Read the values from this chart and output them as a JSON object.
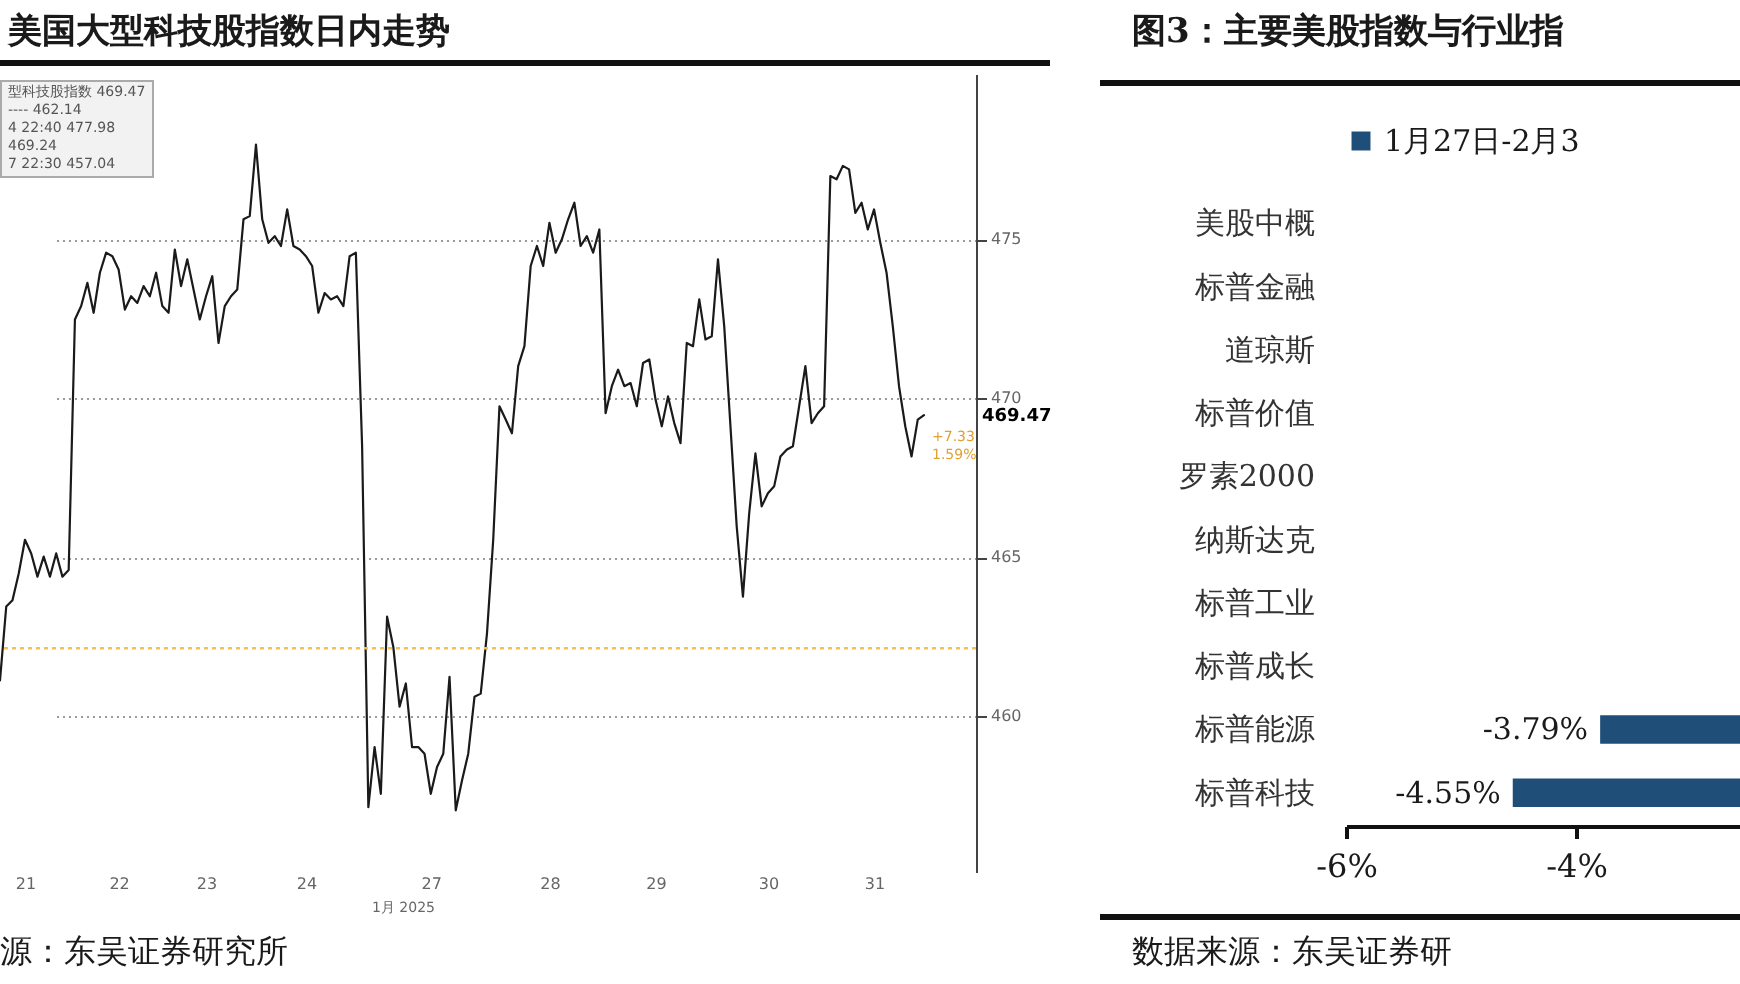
{
  "chart_data": [
    {
      "type": "line",
      "title": "美国大型科技股指数日内走势",
      "categories": [
        null,
        null,
        null,
        null,
        "21",
        null,
        null,
        null,
        null,
        null,
        null,
        null,
        null,
        null,
        null,
        null,
        null,
        null,
        null,
        "22",
        null,
        null,
        null,
        null,
        null,
        null,
        null,
        null,
        null,
        null,
        null,
        null,
        null,
        "23",
        null,
        null,
        null,
        null,
        null,
        null,
        null,
        null,
        null,
        null,
        null,
        null,
        null,
        null,
        null,
        "24",
        null,
        null,
        null,
        null,
        null,
        null,
        null,
        null,
        null,
        null,
        null,
        null,
        null,
        null,
        null,
        null,
        null,
        null,
        null,
        "27",
        null,
        null,
        null,
        null,
        null,
        null,
        null,
        null,
        null,
        null,
        null,
        null,
        null,
        null,
        null,
        null,
        null,
        null,
        "28",
        null,
        null,
        null,
        null,
        null,
        null,
        null,
        null,
        null,
        null,
        null,
        null,
        null,
        null,
        null,
        null,
        "29",
        null,
        null,
        null,
        null,
        null,
        null,
        null,
        null,
        null,
        null,
        null,
        null,
        null,
        null,
        null,
        null,
        null,
        "30",
        null,
        null,
        null,
        null,
        null,
        null,
        null,
        null,
        null,
        null,
        null,
        null,
        null,
        null,
        null,
        null,
        "31",
        null,
        null,
        null,
        null,
        null,
        null,
        null,
        null
      ],
      "series": [
        {
          "color": "#1a1a1a",
          "values": [
            461.13,
            463.45,
            463.65,
            464.49,
            465.55,
            465.12,
            464.39,
            465.02,
            464.39,
            465.12,
            464.39,
            464.6,
            472.48,
            472.9,
            473.63,
            472.69,
            473.95,
            474.58,
            474.47,
            474.05,
            472.79,
            473.21,
            473.0,
            473.53,
            473.21,
            473.95,
            472.9,
            472.69,
            474.68,
            473.53,
            474.37,
            473.42,
            472.48,
            473.21,
            473.84,
            471.74,
            472.9,
            473.21,
            473.42,
            475.63,
            475.73,
            477.98,
            475.63,
            474.89,
            475.1,
            474.79,
            475.94,
            474.79,
            474.68,
            474.47,
            474.16,
            472.69,
            473.31,
            473.11,
            473.21,
            472.9,
            474.47,
            474.58,
            468.49,
            457.14,
            459.03,
            457.56,
            463.13,
            462.18,
            460.3,
            461.03,
            459.03,
            459.03,
            458.82,
            457.56,
            458.4,
            458.82,
            461.24,
            457.04,
            457.98,
            458.82,
            460.61,
            460.71,
            462.6,
            465.55,
            469.75,
            469.33,
            468.9,
            471.01,
            471.64,
            474.16,
            474.79,
            474.16,
            475.52,
            474.58,
            475.0,
            475.63,
            476.15,
            474.79,
            475.1,
            474.58,
            475.31,
            469.53,
            470.38,
            470.9,
            470.38,
            470.48,
            469.75,
            471.11,
            471.22,
            469.96,
            469.12,
            470.06,
            469.22,
            468.59,
            471.74,
            471.64,
            473.11,
            471.85,
            471.95,
            474.37,
            472.27,
            469.12,
            465.97,
            463.76,
            466.38,
            468.27,
            466.6,
            467.01,
            467.23,
            468.17,
            468.38,
            468.49,
            469.75,
            471.01,
            469.22,
            469.53,
            469.75,
            476.99,
            476.89,
            477.31,
            477.2,
            475.83,
            476.15,
            475.31,
            475.94,
            474.89,
            473.95,
            472.27,
            470.38,
            469.12,
            468.17,
            469.33,
            469.47
          ]
        }
      ],
      "ylim": [
        455.1,
        480.2
      ],
      "yticks": [
        460,
        465,
        470,
        475
      ],
      "grid": "y",
      "ref_lines": [
        {
          "axis": "y",
          "value": 462.14,
          "color": "#f2c14e",
          "line_style": "dotted"
        }
      ],
      "annotations": [
        "型科技股指数 469.47",
        "---- 462.14",
        "4 22:40 477.98",
        "469.24",
        "7 22:30 457.04",
        "469.47",
        "+7.33",
        "1.59%",
        "1月 2025",
        "源：东吴证券研究所"
      ]
    },
    {
      "type": "bar",
      "orientation": "horizontal",
      "title": "图3：主要美股指数与行业指",
      "categories": [
        "美股中概",
        "标普金融",
        "道琼斯",
        "标普价值",
        "罗素2000",
        "纳斯达克",
        "标普工业",
        "标普成长",
        "标普能源",
        "标普科技"
      ],
      "series": [
        {
          "name": "1月27日-2月3",
          "color": "#1f4e79",
          "values": [
            null,
            null,
            null,
            null,
            null,
            null,
            null,
            null,
            -3.79,
            -4.55
          ]
        }
      ],
      "value_labels": [
        null,
        null,
        null,
        null,
        null,
        null,
        null,
        null,
        "-3.79%",
        "-4.55%"
      ],
      "xlim": [
        -6,
        0
      ],
      "xticks": [
        {
          "value": -6,
          "label": "-6%"
        },
        {
          "value": -4,
          "label": "-4%"
        }
      ],
      "legend": "top",
      "annotations": [
        "数据来源：东吴证券研"
      ]
    }
  ]
}
